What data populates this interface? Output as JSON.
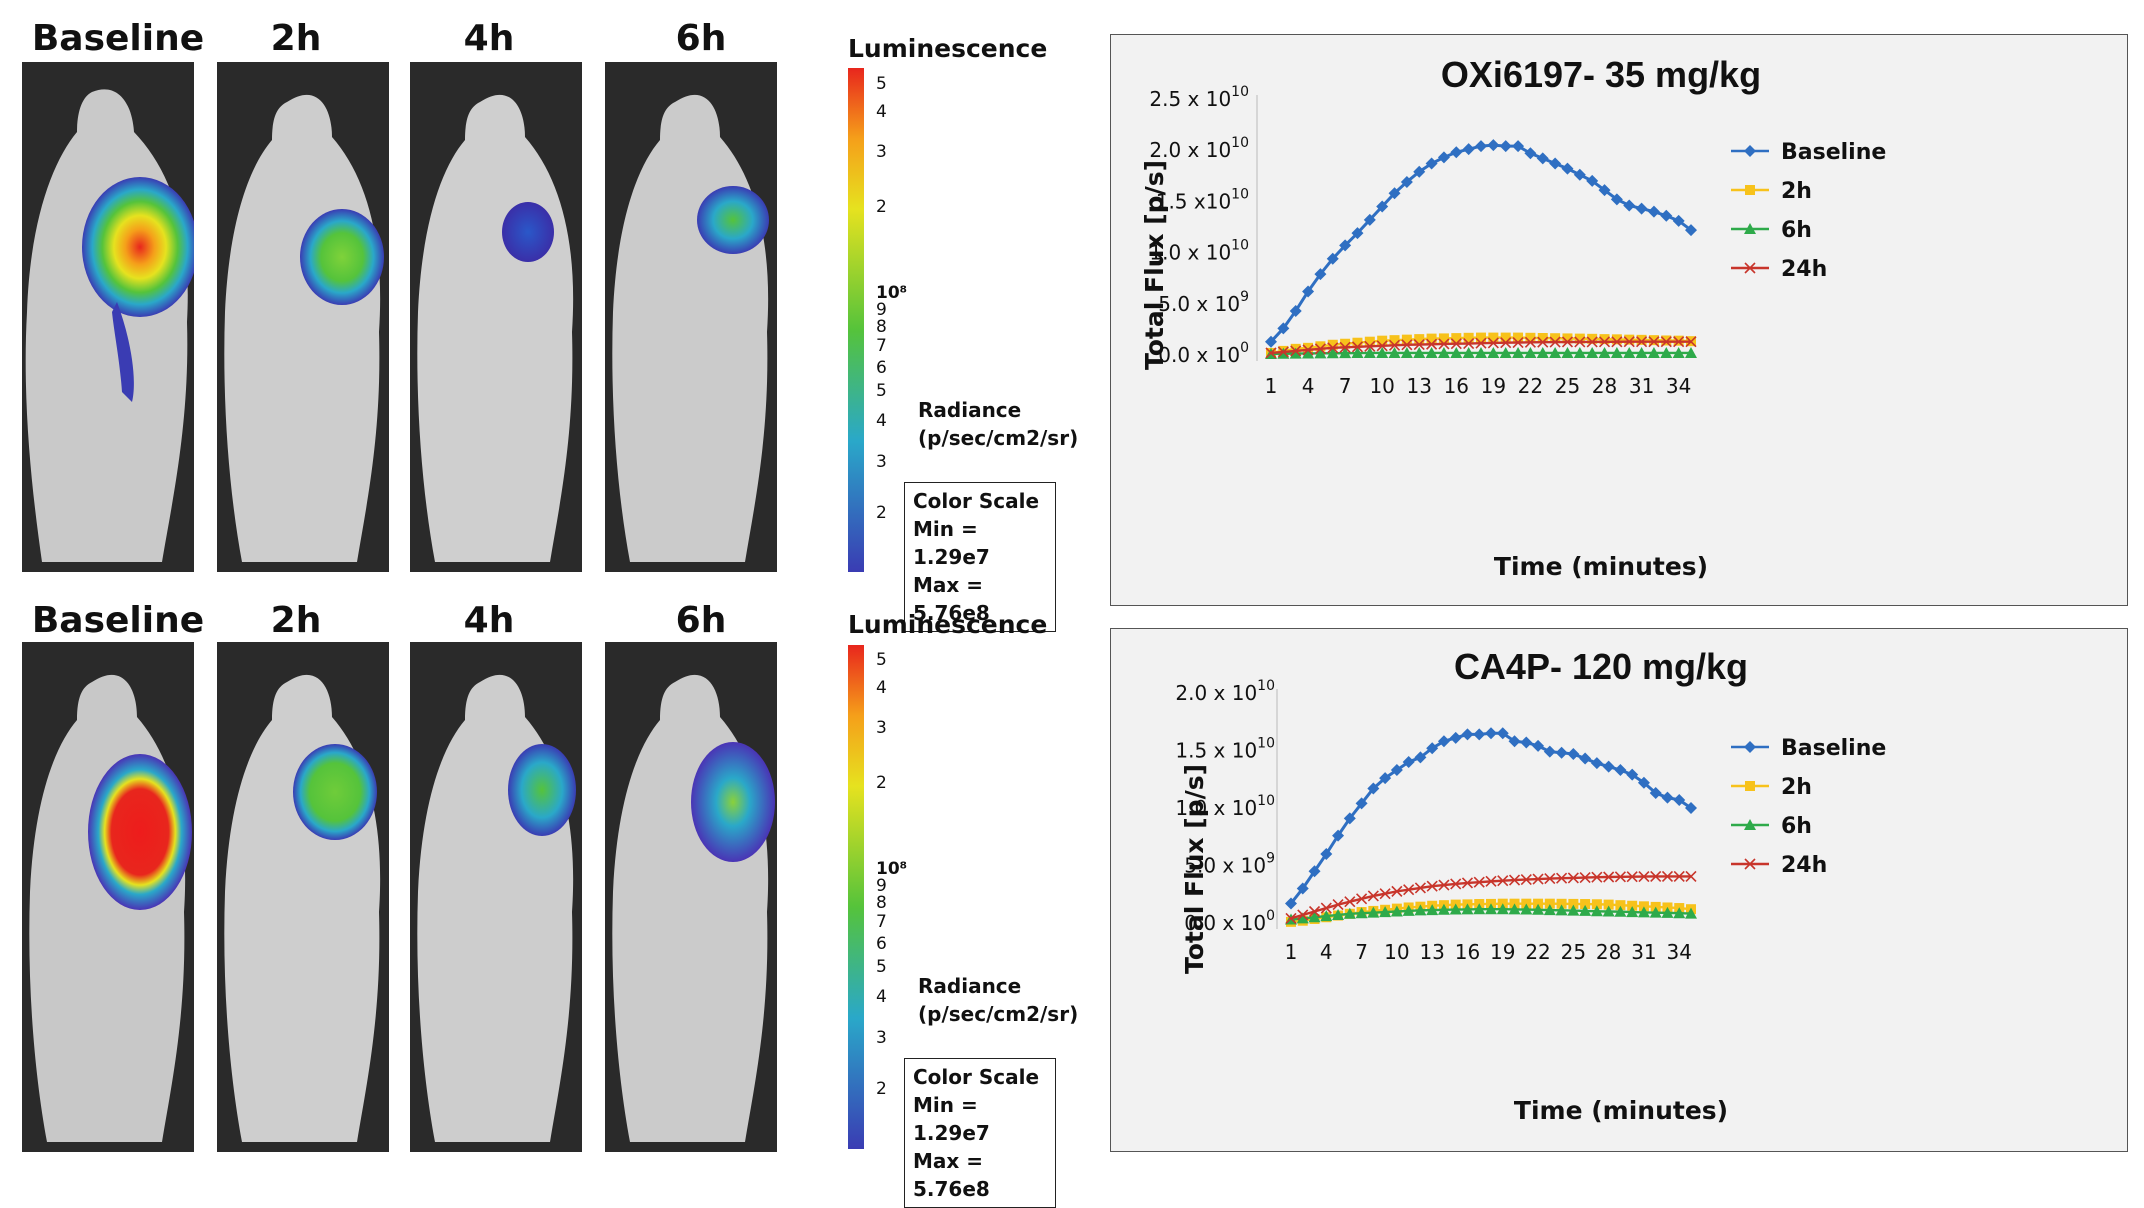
{
  "imaging_rows": [
    {
      "timepoints": [
        "Baseline",
        "2h",
        "4h",
        "6h"
      ],
      "luminescence_title": "Luminescence",
      "colorbar_ticks": [
        "5",
        "4",
        "3",
        "2",
        "10⁸",
        "9",
        "8",
        "7",
        "6",
        "5",
        "4",
        "3",
        "2"
      ],
      "radiance_line1": "Radiance",
      "radiance_line2": "(p/sec/cm2/sr)",
      "color_scale_title": "Color Scale",
      "color_scale_min": "Min = 1.29e7",
      "color_scale_max": "Max = 5.76e8"
    },
    {
      "timepoints": [
        "Baseline",
        "2h",
        "4h",
        "6h"
      ],
      "luminescence_title": "Luminescence",
      "colorbar_ticks": [
        "5",
        "4",
        "3",
        "2",
        "10⁸",
        "9",
        "8",
        "7",
        "6",
        "5",
        "4",
        "3",
        "2"
      ],
      "radiance_line1": "Radiance",
      "radiance_line2": "(p/sec/cm2/sr)",
      "color_scale_title": "Color Scale",
      "color_scale_min": "Min = 1.29e7",
      "color_scale_max": "Max = 5.76e8"
    }
  ],
  "colors": {
    "baseline": "#2f6fc2",
    "h2": "#f7c21b",
    "h6": "#2eaa4a",
    "h24": "#c8352b"
  },
  "chart_data": [
    {
      "type": "line",
      "title": "OXi6197- 35 mg/kg",
      "xlabel": "Time (minutes)",
      "ylabel": "Total Flux [p/s]",
      "x": [
        1,
        2,
        3,
        4,
        5,
        6,
        7,
        8,
        9,
        10,
        11,
        12,
        13,
        14,
        15,
        16,
        17,
        18,
        19,
        20,
        21,
        22,
        23,
        24,
        25,
        26,
        27,
        28,
        29,
        30,
        31,
        32,
        33,
        34,
        35
      ],
      "x_tick_labels": [
        "1",
        "4",
        "7",
        "10",
        "13",
        "16",
        "19",
        "22",
        "25",
        "28",
        "31",
        "34"
      ],
      "x_tick_values": [
        1,
        4,
        7,
        10,
        13,
        16,
        19,
        22,
        25,
        28,
        31,
        34
      ],
      "ylim": [
        0,
        25000000000.0
      ],
      "y_ticks": [
        {
          "value": 0,
          "mantissa": "0.0",
          "times": " x 10",
          "exp": "0"
        },
        {
          "value": 5000000000.0,
          "mantissa": "5.0",
          "times": " x 10",
          "exp": "9"
        },
        {
          "value": 10000000000.0,
          "mantissa": "1.0",
          "times": " x 10",
          "exp": "10"
        },
        {
          "value": 15000000000.0,
          "mantissa": "1.5",
          "times": " x10",
          "exp": "10"
        },
        {
          "value": 20000000000.0,
          "mantissa": "2.0",
          "times": " x 10",
          "exp": "10"
        },
        {
          "value": 25000000000.0,
          "mantissa": "2.5",
          "times": " x 10",
          "exp": "10"
        }
      ],
      "series": [
        {
          "name": "Baseline",
          "color": "#2f6fc2",
          "marker": "diamond",
          "values": [
            1300000000.0,
            2600000000.0,
            4300000000.0,
            6200000000.0,
            7900000000.0,
            9400000000.0,
            10700000000.0,
            11900000000.0,
            13200000000.0,
            14500000000.0,
            15800000000.0,
            16900000000.0,
            17900000000.0,
            18700000000.0,
            19300000000.0,
            19800000000.0,
            20100000000.0,
            20400000000.0,
            20500000000.0,
            20400000000.0,
            20400000000.0,
            19700000000.0,
            19200000000.0,
            18700000000.0,
            18200000000.0,
            17600000000.0,
            17000000000.0,
            16100000000.0,
            15200000000.0,
            14600000000.0,
            14300000000.0,
            14000000000.0,
            13600000000.0,
            13100000000.0,
            12200000000.0
          ]
        },
        {
          "name": "2h",
          "color": "#f7c21b",
          "marker": "square",
          "values": [
            200000000.0,
            400000000.0,
            600000000.0,
            700000000.0,
            850000000.0,
            1000000000.0,
            1100000000.0,
            1200000000.0,
            1300000000.0,
            1400000000.0,
            1450000000.0,
            1500000000.0,
            1550000000.0,
            1600000000.0,
            1620000000.0,
            1650000000.0,
            1680000000.0,
            1700000000.0,
            1700000000.0,
            1700000000.0,
            1700000000.0,
            1680000000.0,
            1660000000.0,
            1640000000.0,
            1620000000.0,
            1600000000.0,
            1580000000.0,
            1550000000.0,
            1530000000.0,
            1500000000.0,
            1480000000.0,
            1450000000.0,
            1420000000.0,
            1400000000.0,
            1350000000.0
          ]
        },
        {
          "name": "6h",
          "color": "#2eaa4a",
          "marker": "triangle",
          "values": [
            100000000.0,
            120000000.0,
            140000000.0,
            150000000.0,
            160000000.0,
            170000000.0,
            180000000.0,
            190000000.0,
            200000000.0,
            200000000.0,
            200000000.0,
            200000000.0,
            200000000.0,
            200000000.0,
            200000000.0,
            200000000.0,
            200000000.0,
            200000000.0,
            200000000.0,
            200000000.0,
            200000000.0,
            200000000.0,
            200000000.0,
            200000000.0,
            200000000.0,
            200000000.0,
            200000000.0,
            200000000.0,
            200000000.0,
            200000000.0,
            200000000.0,
            200000000.0,
            200000000.0,
            200000000.0,
            200000000.0
          ]
        },
        {
          "name": "24h",
          "color": "#c8352b",
          "marker": "x",
          "values": [
            200000000.0,
            300000000.0,
            400000000.0,
            500000000.0,
            600000000.0,
            700000000.0,
            750000000.0,
            800000000.0,
            850000000.0,
            900000000.0,
            950000000.0,
            1000000000.0,
            1020000000.0,
            1050000000.0,
            1080000000.0,
            1100000000.0,
            1120000000.0,
            1150000000.0,
            1180000000.0,
            1200000000.0,
            1220000000.0,
            1240000000.0,
            1250000000.0,
            1260000000.0,
            1270000000.0,
            1280000000.0,
            1280000000.0,
            1290000000.0,
            1290000000.0,
            1300000000.0,
            1300000000.0,
            1300000000.0,
            1300000000.0,
            1300000000.0,
            1300000000.0
          ]
        }
      ]
    },
    {
      "type": "line",
      "title": "CA4P- 120 mg/kg",
      "xlabel": "Time (minutes)",
      "ylabel": "Total Flux [p/s]",
      "x": [
        1,
        2,
        3,
        4,
        5,
        6,
        7,
        8,
        9,
        10,
        11,
        12,
        13,
        14,
        15,
        16,
        17,
        18,
        19,
        20,
        21,
        22,
        23,
        24,
        25,
        26,
        27,
        28,
        29,
        30,
        31,
        32,
        33,
        34,
        35
      ],
      "x_tick_labels": [
        "1",
        "4",
        "7",
        "10",
        "13",
        "16",
        "19",
        "22",
        "25",
        "28",
        "31",
        "34"
      ],
      "x_tick_values": [
        1,
        4,
        7,
        10,
        13,
        16,
        19,
        22,
        25,
        28,
        31,
        34
      ],
      "ylim": [
        0,
        20000000000.0
      ],
      "y_ticks": [
        {
          "value": 0,
          "mantissa": "0.0",
          "times": " x 10",
          "exp": "0"
        },
        {
          "value": 5000000000.0,
          "mantissa": "5.0",
          "times": " x 10",
          "exp": "9"
        },
        {
          "value": 10000000000.0,
          "mantissa": "1.0",
          "times": " x 10",
          "exp": "10"
        },
        {
          "value": 15000000000.0,
          "mantissa": "1.5",
          "times": " x 10",
          "exp": "10"
        },
        {
          "value": 20000000000.0,
          "mantissa": "2.0",
          "times": " x 10",
          "exp": "10"
        }
      ],
      "series": [
        {
          "name": "Baseline",
          "color": "#2f6fc2",
          "marker": "diamond",
          "values": [
            1700000000.0,
            3000000000.0,
            4500000000.0,
            6000000000.0,
            7600000000.0,
            9100000000.0,
            10400000000.0,
            11700000000.0,
            12600000000.0,
            13300000000.0,
            14000000000.0,
            14400000000.0,
            15200000000.0,
            15800000000.0,
            16100000000.0,
            16400000000.0,
            16400000000.0,
            16500000000.0,
            16500000000.0,
            15800000000.0,
            15700000000.0,
            15400000000.0,
            14900000000.0,
            14800000000.0,
            14700000000.0,
            14300000000.0,
            13900000000.0,
            13600000000.0,
            13300000000.0,
            12900000000.0,
            12200000000.0,
            11300000000.0,
            10900000000.0,
            10700000000.0,
            10000000000.0
          ]
        },
        {
          "name": "2h",
          "color": "#f7c21b",
          "marker": "square",
          "values": [
            100000000.0,
            200000000.0,
            350000000.0,
            500000000.0,
            650000000.0,
            800000000.0,
            950000000.0,
            1050000000.0,
            1150000000.0,
            1250000000.0,
            1350000000.0,
            1420000000.0,
            1500000000.0,
            1550000000.0,
            1600000000.0,
            1620000000.0,
            1650000000.0,
            1660000000.0,
            1680000000.0,
            1680000000.0,
            1680000000.0,
            1680000000.0,
            1680000000.0,
            1670000000.0,
            1660000000.0,
            1650000000.0,
            1630000000.0,
            1600000000.0,
            1550000000.0,
            1500000000.0,
            1450000000.0,
            1400000000.0,
            1350000000.0,
            1300000000.0,
            1200000000.0
          ]
        },
        {
          "name": "6h",
          "color": "#2eaa4a",
          "marker": "triangle",
          "values": [
            300000000.0,
            400000000.0,
            500000000.0,
            600000000.0,
            700000000.0,
            800000000.0,
            850000000.0,
            900000000.0,
            950000000.0,
            1000000000.0,
            1050000000.0,
            1100000000.0,
            1120000000.0,
            1150000000.0,
            1170000000.0,
            1180000000.0,
            1200000000.0,
            1200000000.0,
            1200000000.0,
            1180000000.0,
            1170000000.0,
            1150000000.0,
            1120000000.0,
            1100000000.0,
            1080000000.0,
            1050000000.0,
            1020000000.0,
            1000000000.0,
            980000000.0,
            950000000.0,
            920000000.0,
            900000000.0,
            880000000.0,
            850000000.0,
            820000000.0
          ]
        },
        {
          "name": "24h",
          "color": "#c8352b",
          "marker": "x",
          "values": [
            400000000.0,
            700000000.0,
            1000000000.0,
            1300000000.0,
            1600000000.0,
            1850000000.0,
            2100000000.0,
            2350000000.0,
            2550000000.0,
            2750000000.0,
            2900000000.0,
            3050000000.0,
            3200000000.0,
            3300000000.0,
            3400000000.0,
            3480000000.0,
            3550000000.0,
            3620000000.0,
            3680000000.0,
            3730000000.0,
            3780000000.0,
            3820000000.0,
            3860000000.0,
            3900000000.0,
            3920000000.0,
            3950000000.0,
            3980000000.0,
            4000000000.0,
            4020000000.0,
            4030000000.0,
            4040000000.0,
            4050000000.0,
            4050000000.0,
            4050000000.0,
            4050000000.0
          ]
        }
      ]
    }
  ]
}
